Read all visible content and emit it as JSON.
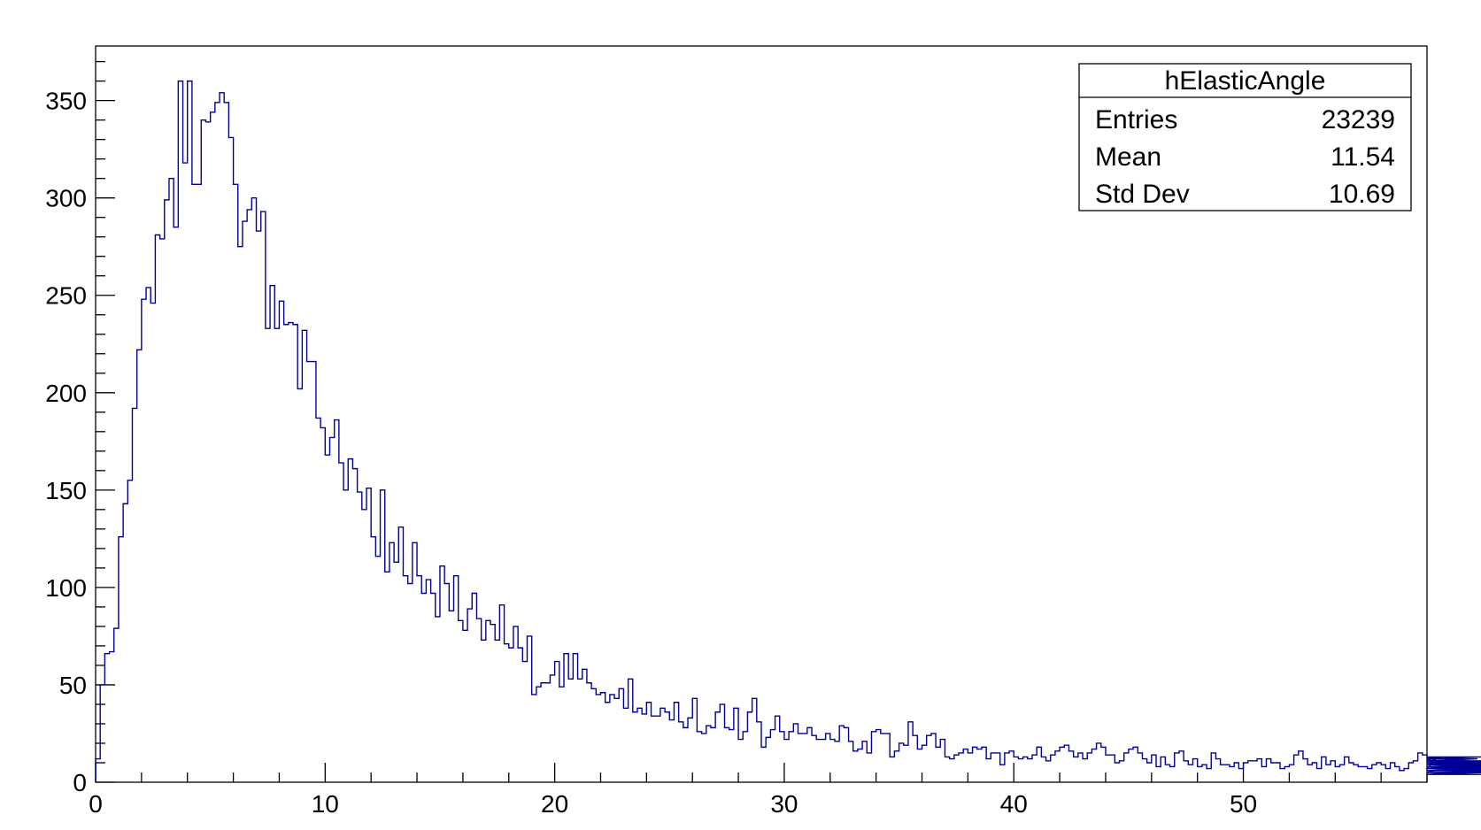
{
  "chart_data": {
    "type": "histogram",
    "x_start": 0,
    "bin_width": 0.2,
    "xlim": [
      0,
      58
    ],
    "ylim": [
      0,
      378
    ],
    "x_ticks": [
      0,
      10,
      20,
      30,
      40,
      50
    ],
    "y_ticks": [
      0,
      50,
      100,
      150,
      200,
      250,
      300,
      350
    ],
    "grid": false,
    "line_color": "#000099",
    "values": [
      12,
      50,
      66,
      67,
      79,
      126,
      143,
      155,
      192,
      222,
      248,
      254,
      246,
      281,
      279,
      299,
      310,
      285,
      360,
      318,
      360,
      307,
      307,
      340,
      339,
      344,
      349,
      354,
      349,
      331,
      307,
      275,
      288,
      294,
      300,
      283,
      293,
      233,
      255,
      233,
      247,
      235,
      236,
      235,
      202,
      232,
      216,
      216,
      187,
      182,
      168,
      177,
      186,
      164,
      150,
      166,
      161,
      149,
      140,
      151,
      126,
      116,
      150,
      108,
      123,
      113,
      131,
      106,
      102,
      123,
      106,
      97,
      104,
      97,
      85,
      111,
      102,
      88,
      106,
      83,
      78,
      89,
      97,
      84,
      73,
      83,
      81,
      73,
      91,
      71,
      69,
      80,
      69,
      62,
      75,
      45,
      49,
      51,
      51,
      55,
      62,
      49,
      66,
      53,
      66,
      53,
      58,
      51,
      48,
      45,
      46,
      41,
      45,
      43,
      48,
      38,
      53,
      36,
      38,
      35,
      41,
      34,
      34,
      38,
      36,
      32,
      41,
      31,
      28,
      33,
      43,
      26,
      25,
      29,
      28,
      36,
      40,
      28,
      27,
      38,
      22,
      26,
      36,
      43,
      31,
      18,
      23,
      27,
      34,
      26,
      22,
      26,
      30,
      25,
      25,
      28,
      24,
      22,
      22,
      25,
      22,
      21,
      29,
      28,
      21,
      16,
      17,
      21,
      15,
      26,
      27,
      25,
      25,
      13,
      16,
      20,
      19,
      31,
      24,
      17,
      19,
      24,
      25,
      18,
      22,
      13,
      12,
      14,
      15,
      17,
      15,
      18,
      17,
      18,
      12,
      15,
      15,
      9,
      15,
      16,
      13,
      12,
      13,
      12,
      14,
      18,
      13,
      11,
      14,
      16,
      18,
      19,
      16,
      13,
      15,
      12,
      15,
      17,
      20,
      18,
      14,
      14,
      10,
      11,
      15,
      17,
      18,
      15,
      12,
      10,
      14,
      8,
      13,
      9,
      8,
      15,
      16,
      11,
      9,
      12,
      8,
      9,
      7,
      15,
      12,
      9,
      9,
      8,
      10,
      7,
      10,
      11,
      11,
      12,
      8,
      12,
      10,
      10,
      7,
      8,
      9,
      14,
      16,
      12,
      9,
      10,
      7,
      13,
      9,
      11,
      8,
      9,
      13,
      10,
      9,
      8,
      8,
      7,
      9,
      10,
      9,
      7,
      10,
      8,
      6,
      7,
      10,
      11,
      15,
      14,
      11,
      7,
      12,
      13,
      9,
      11,
      9,
      12,
      5,
      10,
      11,
      12,
      13,
      10,
      9,
      11,
      10,
      9,
      11,
      7,
      9,
      10,
      8,
      6,
      8,
      8,
      4,
      9,
      8,
      7,
      9,
      8,
      7,
      9,
      9,
      6,
      10,
      8,
      8,
      6,
      7,
      8,
      10,
      8,
      7,
      11,
      9,
      7,
      8,
      7,
      6,
      4,
      8,
      9,
      9,
      10,
      11,
      9,
      7,
      7,
      10,
      9,
      6,
      8,
      6,
      9,
      8,
      10,
      7,
      7,
      6,
      6,
      6,
      8,
      6,
      6,
      8,
      7,
      8,
      9,
      8,
      7,
      5,
      7,
      6,
      7,
      8,
      7,
      6,
      6,
      7,
      8,
      6,
      7,
      5
    ],
    "stats": {
      "title": "hElasticAngle",
      "rows": [
        {
          "label": "Entries",
          "value": "23239"
        },
        {
          "label": "Mean",
          "value": "11.54"
        },
        {
          "label": "Std Dev",
          "value": "10.69"
        }
      ]
    }
  }
}
